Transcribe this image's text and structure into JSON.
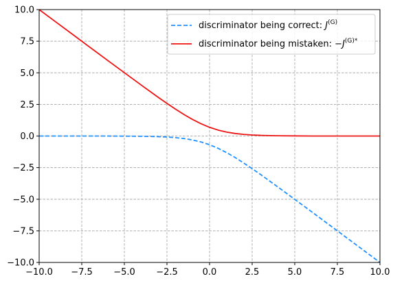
{
  "chart_data": {
    "type": "line",
    "title": "",
    "xlabel": "",
    "ylabel": "",
    "xlim": [
      -10,
      10
    ],
    "ylim": [
      -10,
      10
    ],
    "xticks": [
      -10,
      -7.5,
      -5,
      -2.5,
      0,
      2.5,
      5,
      7.5,
      10
    ],
    "yticks": [
      -10,
      -7.5,
      -5,
      -2.5,
      0,
      2.5,
      5,
      7.5,
      10
    ],
    "xtick_labels": [
      "−10.0",
      "−7.5",
      "−5.0",
      "−2.5",
      "0.0",
      "2.5",
      "5.0",
      "7.5",
      "10.0"
    ],
    "ytick_labels": [
      "−10.0",
      "−7.5",
      "−5.0",
      "−2.5",
      "0.0",
      "2.5",
      "5.0",
      "7.5",
      "10.0"
    ],
    "grid": true,
    "grid_style": "dashed",
    "legend_position": "top-right",
    "x": [
      -10,
      -9,
      -8,
      -7,
      -6,
      -5,
      -4,
      -3,
      -2.5,
      -2,
      -1.5,
      -1,
      -0.5,
      0,
      0.5,
      1,
      1.5,
      2,
      2.5,
      3,
      4,
      5,
      6,
      7,
      8,
      9,
      10
    ],
    "series": [
      {
        "name_prefix": "discriminator being correct: ",
        "name_math": "J",
        "name_sup": "(G)",
        "color": "#1e90ff",
        "style": "dashed",
        "values": [
          0,
          0,
          0,
          0,
          0,
          -0.01,
          -0.02,
          -0.05,
          -0.08,
          -0.13,
          -0.2,
          -0.31,
          -0.47,
          -0.69,
          -0.97,
          -1.31,
          -1.7,
          -2.13,
          -2.58,
          -3.05,
          -4.02,
          -5.01,
          -6,
          -7,
          -8,
          -9,
          -10
        ]
      },
      {
        "name_prefix": "discriminator being mistaken: −",
        "name_math": "J",
        "name_sup": "(G)*",
        "color": "#ee1111",
        "style": "solid",
        "values": [
          10,
          9,
          8,
          7,
          6,
          5.01,
          4.02,
          3.05,
          2.58,
          2.13,
          1.7,
          1.31,
          0.97,
          0.69,
          0.47,
          0.31,
          0.2,
          0.13,
          0.08,
          0.05,
          0.02,
          0.01,
          0,
          0,
          0,
          0,
          0
        ]
      }
    ]
  }
}
